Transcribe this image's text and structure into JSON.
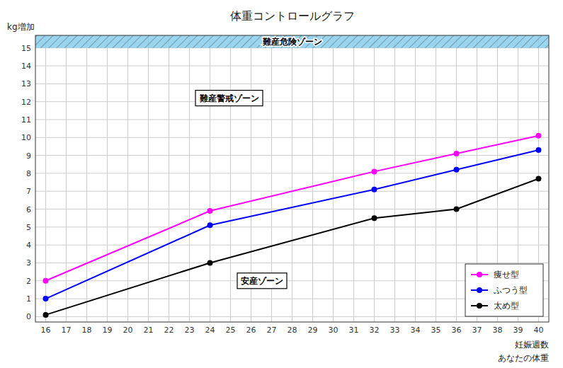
{
  "chart_data": {
    "type": "line",
    "title": "体重コントロールグラフ",
    "xlabel": "妊娠週数",
    "ylabel": "kg増加",
    "x": [
      16,
      24,
      32,
      36,
      40
    ],
    "series": [
      {
        "name": "痩せ型",
        "color": "#FF00FF",
        "values": [
          2.0,
          5.9,
          8.1,
          9.1,
          10.1
        ]
      },
      {
        "name": "ふつう型",
        "color": "#0000FF",
        "values": [
          1.0,
          5.1,
          7.1,
          8.2,
          9.3
        ]
      },
      {
        "name": "太め型",
        "color": "#000000",
        "values": [
          0.1,
          3.0,
          5.5,
          6.0,
          7.7
        ]
      }
    ],
    "xlim": [
      15.5,
      40.5
    ],
    "ylim": [
      -0.3,
      15.7
    ],
    "xticks": [
      16,
      17,
      18,
      19,
      20,
      21,
      22,
      23,
      24,
      25,
      26,
      27,
      28,
      29,
      30,
      31,
      32,
      33,
      34,
      35,
      36,
      37,
      38,
      39,
      40
    ],
    "yticks": [
      0,
      1,
      2,
      3,
      4,
      5,
      6,
      7,
      8,
      9,
      10,
      11,
      12,
      13,
      14,
      15
    ],
    "grid": true,
    "legend": "lower right",
    "marker": "circle",
    "bands": [
      {
        "from": 15.0,
        "to": 15.7,
        "label": "難産危険ゾーン",
        "color": "#87CEEB"
      }
    ],
    "annotations": [
      {
        "text": "難産警戒ゾーン"
      },
      {
        "text": "安産ゾーン"
      },
      {
        "text": "あなたの体重"
      }
    ]
  }
}
